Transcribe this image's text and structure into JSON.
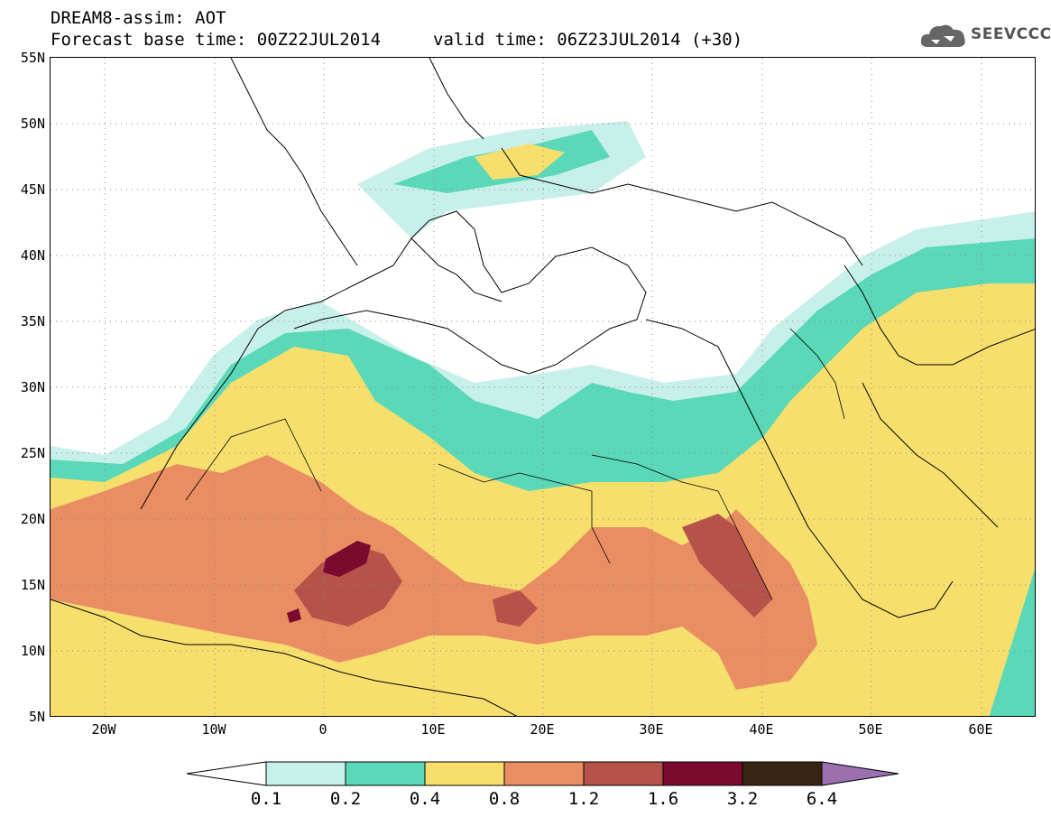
{
  "header": {
    "line1": "DREAM8-assim: AOT",
    "line2": "Forecast base time: 00Z22JUL2014",
    "valid": "valid time: 06Z23JUL2014 (+30)"
  },
  "logo": {
    "text": "SEEVCCC",
    "icon": "cloud-icon"
  },
  "map": {
    "lat_labels": [
      "55N",
      "50N",
      "45N",
      "40N",
      "35N",
      "30N",
      "25N",
      "20N",
      "15N",
      "10N",
      "5N"
    ],
    "lon_labels": [
      "20W",
      "10W",
      "0",
      "10E",
      "20E",
      "30E",
      "40E",
      "50E",
      "60E"
    ],
    "lon_range": [
      -25,
      65
    ],
    "lat_range": [
      5,
      55
    ],
    "grid": "dotted"
  },
  "colorbar": {
    "labels": [
      "0.1",
      "0.2",
      "0.4",
      "0.8",
      "1.2",
      "1.6",
      "3.2",
      "6.4"
    ],
    "colors": [
      "#ffffff",
      "#c8f0ea",
      "#5ad8b8",
      "#f7df6e",
      "#e98d63",
      "#b5524a",
      "#7a0a2e",
      "#3a2414",
      "#9b6fb0"
    ]
  }
}
